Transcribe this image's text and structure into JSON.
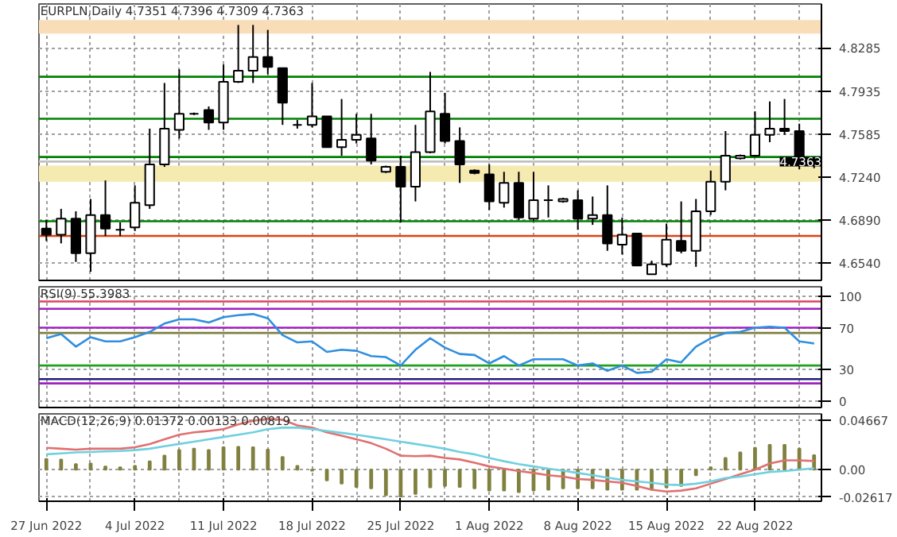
{
  "chart_data": [
    {
      "type": "candlestick",
      "title": "EURPLN,Daily 4.7351 4.7396 4.7309 4.7363",
      "categories": [
        null,
        null,
        null,
        null,
        null,
        null,
        null,
        null,
        null,
        null,
        null,
        null,
        null,
        null,
        null,
        null,
        null,
        null,
        null,
        null,
        null,
        null,
        null,
        null,
        null,
        null,
        null,
        null,
        null,
        null,
        null,
        null,
        null,
        null,
        null,
        null,
        null,
        null,
        null,
        null,
        null,
        null,
        null,
        null,
        null,
        null,
        null,
        null,
        null,
        null,
        null,
        null,
        null
      ],
      "ohlc": [
        [
          4.682,
          4.689,
          4.672,
          4.677
        ],
        [
          4.677,
          4.698,
          4.67,
          4.69
        ],
        [
          4.69,
          4.696,
          4.655,
          4.662
        ],
        [
          4.662,
          4.706,
          4.647,
          4.693
        ],
        [
          4.693,
          4.721,
          4.676,
          4.682
        ],
        [
          4.681,
          4.687,
          4.676,
          4.681
        ],
        [
          4.683,
          4.717,
          4.68,
          4.703
        ],
        [
          4.701,
          4.763,
          4.698,
          4.734
        ],
        [
          4.734,
          4.8,
          4.732,
          4.763
        ],
        [
          4.762,
          4.811,
          4.755,
          4.775
        ],
        [
          4.775,
          4.776,
          4.774,
          4.775
        ],
        [
          4.778,
          4.781,
          4.762,
          4.768
        ],
        [
          4.768,
          4.815,
          4.762,
          4.801
        ],
        [
          4.801,
          4.847,
          4.8,
          4.81
        ],
        [
          4.81,
          4.847,
          4.8,
          4.821
        ],
        [
          4.821,
          4.843,
          4.807,
          4.813
        ],
        [
          4.812,
          4.812,
          4.766,
          4.784
        ],
        [
          4.766,
          4.77,
          4.763,
          4.766
        ],
        [
          4.766,
          4.8,
          4.764,
          4.773
        ],
        [
          4.773,
          4.773,
          4.748,
          4.748
        ],
        [
          4.748,
          4.787,
          4.741,
          4.754
        ],
        [
          4.754,
          4.775,
          4.751,
          4.758
        ],
        [
          4.755,
          4.775,
          4.734,
          4.737
        ],
        [
          4.728,
          4.733,
          4.727,
          4.732
        ],
        [
          4.732,
          4.741,
          4.687,
          4.716
        ],
        [
          4.716,
          4.766,
          4.704,
          4.744
        ],
        [
          4.744,
          4.809,
          4.743,
          4.777
        ],
        [
          4.775,
          4.792,
          4.751,
          4.753
        ],
        [
          4.753,
          4.764,
          4.719,
          4.734
        ],
        [
          4.729,
          4.73,
          4.726,
          4.727
        ],
        [
          4.726,
          4.734,
          4.697,
          4.704
        ],
        [
          4.703,
          4.728,
          4.699,
          4.719
        ],
        [
          4.719,
          4.728,
          4.689,
          4.691
        ],
        [
          4.69,
          4.728,
          4.688,
          4.705
        ],
        [
          4.705,
          4.717,
          4.691,
          4.705
        ],
        [
          4.704,
          4.707,
          4.703,
          4.706
        ],
        [
          4.705,
          4.713,
          4.681,
          4.69
        ],
        [
          4.69,
          4.708,
          4.685,
          4.693
        ],
        [
          4.693,
          4.717,
          4.664,
          4.67
        ],
        [
          4.669,
          4.691,
          4.661,
          4.677
        ],
        [
          4.678,
          4.678,
          4.652,
          4.652
        ],
        [
          4.645,
          4.656,
          4.645,
          4.653
        ],
        [
          4.653,
          4.686,
          4.651,
          4.673
        ],
        [
          4.672,
          4.704,
          4.662,
          4.664
        ],
        [
          4.664,
          4.706,
          4.651,
          4.696
        ],
        [
          4.696,
          4.729,
          4.693,
          4.72
        ],
        [
          4.72,
          4.761,
          4.713,
          4.741
        ],
        [
          4.739,
          4.742,
          4.738,
          4.741
        ],
        [
          4.741,
          4.777,
          4.74,
          4.758
        ],
        [
          4.758,
          4.785,
          4.752,
          4.763
        ],
        [
          4.763,
          4.787,
          4.758,
          4.761
        ],
        [
          4.761,
          4.767,
          4.73,
          4.736
        ],
        [
          4.7351,
          4.7396,
          4.7309,
          4.7363
        ]
      ],
      "ylim": [
        4.64,
        4.864
      ],
      "yticks": [
        4.8285,
        4.7935,
        4.7585,
        {
          "value": 4.724,
          "label": "4.7240"
        },
        {
          "value": 4.689,
          "label": "4.6890"
        },
        {
          "value": 4.654,
          "label": "4.6540"
        }
      ],
      "ref_lines": [
        {
          "axis": "y",
          "value": 4.805,
          "label": null,
          "color": "#008000"
        },
        {
          "axis": "y",
          "value": 4.771,
          "label": null,
          "color": "#008000"
        },
        {
          "axis": "y",
          "value": 4.74,
          "label": null,
          "color": "#008000"
        },
        {
          "axis": "y",
          "value": 4.688,
          "label": null,
          "color": "#008000"
        },
        {
          "axis": "y",
          "value": 4.676,
          "label": null,
          "color": "#e04010"
        },
        {
          "axis": "y",
          "value": 4.7363,
          "label": "4.7363",
          "color": "#c0c0c0"
        }
      ],
      "bands": [
        {
          "axis": "y",
          "from": 4.84,
          "to": 4.851,
          "label": null,
          "color": "#f9dcb8"
        },
        {
          "axis": "y",
          "from": 4.72,
          "to": 4.733,
          "label": null,
          "color": "#f5eab0"
        }
      ],
      "grid": true,
      "tick_labels": "y"
    },
    {
      "type": "line",
      "title": "RSI(9) 55.3983",
      "categories": [
        null,
        null,
        null,
        null,
        null,
        null,
        null,
        null,
        null,
        null,
        null,
        null,
        null,
        null,
        null,
        null,
        null,
        null,
        null,
        null,
        null,
        null,
        null,
        null,
        null,
        null,
        null,
        null,
        null,
        null,
        null,
        null,
        null,
        null,
        null,
        null,
        null,
        null,
        null,
        null,
        null,
        null,
        null,
        null,
        null,
        null,
        null,
        null,
        null,
        null,
        null,
        null,
        null
      ],
      "series": [
        {
          "color": "#2f8fdf",
          "values": [
            60,
            64,
            52,
            61,
            57,
            57,
            61,
            66,
            74,
            78,
            78,
            75,
            80,
            82,
            83,
            79,
            63,
            56,
            57,
            47,
            49,
            48,
            43,
            42,
            34,
            49,
            60,
            51,
            45,
            44,
            36,
            43,
            34,
            40,
            40,
            40,
            34,
            36,
            29,
            34,
            27,
            28,
            40,
            37,
            52,
            60,
            65,
            66,
            70,
            71,
            70,
            57,
            55
          ]
        }
      ],
      "ylim": [
        -6,
        109
      ],
      "yticks": [
        100,
        70,
        30,
        0
      ],
      "ref_lines": [
        {
          "axis": "y",
          "value": 95,
          "label": null,
          "color": "#e04060"
        },
        {
          "axis": "y",
          "value": 88,
          "label": null,
          "color": "#a020c0"
        },
        {
          "axis": "y",
          "value": 70,
          "label": null,
          "color": "#a020c0"
        },
        {
          "axis": "y",
          "value": 65,
          "label": null,
          "color": "#808040"
        },
        {
          "axis": "y",
          "value": 34,
          "label": null,
          "color": "#20a020"
        },
        {
          "axis": "y",
          "value": 21,
          "label": null,
          "color": "#202080"
        },
        {
          "axis": "y",
          "value": 17,
          "label": null,
          "color": "#a020c0"
        }
      ],
      "grid": true,
      "tick_labels": "y"
    },
    {
      "type": "bar",
      "title": "MACD(12,26,9) 0.01372 0.00133 0.00819",
      "categories": [
        "27 Jun 2022",
        null,
        null,
        null,
        null,
        null,
        "4 Jul 2022",
        null,
        null,
        null,
        null,
        null,
        "11 Jul 2022",
        null,
        null,
        null,
        null,
        null,
        "18 Jul 2022",
        null,
        null,
        null,
        null,
        null,
        "25 Jul 2022",
        null,
        null,
        null,
        null,
        null,
        "1 Aug 2022",
        null,
        null,
        null,
        null,
        null,
        "8 Aug 2022",
        null,
        null,
        null,
        null,
        null,
        "15 Aug 2022",
        null,
        null,
        null,
        null,
        null,
        "22 Aug 2022",
        null,
        null,
        null,
        null
      ],
      "series": [
        {
          "type": "bar",
          "color": "#808040",
          "values": [
            0.0102,
            0.0097,
            0.0053,
            0.0058,
            0.0031,
            0.0022,
            0.0035,
            0.008,
            0.0133,
            0.0186,
            0.0199,
            0.0186,
            0.0213,
            0.0217,
            0.0213,
            0.019,
            0.012,
            0.0035,
            -0.0009,
            -0.0102,
            -0.0133,
            -0.0164,
            -0.0177,
            -0.0244,
            -0.0257,
            -0.023,
            -0.0168,
            -0.0155,
            -0.0164,
            -0.0177,
            -0.0199,
            -0.0199,
            -0.0213,
            -0.0199,
            -0.019,
            -0.0177,
            -0.0177,
            -0.0177,
            -0.019,
            -0.019,
            -0.019,
            -0.019,
            -0.0168,
            -0.0155,
            -0.0053,
            0.0022,
            0.0111,
            0.0164,
            0.0208,
            0.0235,
            0.0235,
            0.0199,
            0.0137
          ]
        },
        {
          "type": "line",
          "color": "#e07070",
          "values": [
            0.0208,
            0.0199,
            0.019,
            0.0199,
            0.0199,
            0.0199,
            0.0213,
            0.0244,
            0.0288,
            0.0332,
            0.0354,
            0.0368,
            0.0385,
            0.043,
            0.0465,
            0.0483,
            0.0474,
            0.0421,
            0.0399,
            0.0354,
            0.0323,
            0.0288,
            0.0252,
            0.0199,
            0.0133,
            0.0128,
            0.0133,
            0.0111,
            0.0097,
            0.0066,
            0.0031,
            0.0009,
            -0.0013,
            -0.0031,
            -0.0053,
            -0.0066,
            -0.0089,
            -0.0097,
            -0.0111,
            -0.0124,
            -0.0155,
            -0.019,
            -0.0208,
            -0.0199,
            -0.0177,
            -0.0133,
            -0.0089,
            -0.0044,
            0.0,
            0.0058,
            0.0089,
            0.0089,
            0.0082
          ]
        },
        {
          "type": "line",
          "color": "#70d0e0",
          "values": [
            0.0146,
            0.0155,
            0.0164,
            0.0168,
            0.0173,
            0.0177,
            0.0186,
            0.0199,
            0.0222,
            0.0244,
            0.0266,
            0.0288,
            0.031,
            0.0332,
            0.0354,
            0.0385,
            0.0399,
            0.0399,
            0.0385,
            0.0368,
            0.035,
            0.0332,
            0.031,
            0.0288,
            0.0266,
            0.0244,
            0.0222,
            0.0199,
            0.0168,
            0.0146,
            0.0111,
            0.008,
            0.0053,
            0.0031,
            0.0009,
            -0.0009,
            -0.0031,
            -0.0053,
            -0.0075,
            -0.0097,
            -0.0111,
            -0.0124,
            -0.0142,
            -0.0146,
            -0.0133,
            -0.0111,
            -0.008,
            -0.0066,
            -0.0044,
            -0.0022,
            -0.0013,
            0.0,
            0.0013
          ]
        }
      ],
      "ylim": [
        -0.03,
        0.053
      ],
      "yticks": [
        0.04667,
        {
          "value": 0,
          "label": "0.00"
        },
        -0.02617
      ],
      "grid": true
    }
  ]
}
